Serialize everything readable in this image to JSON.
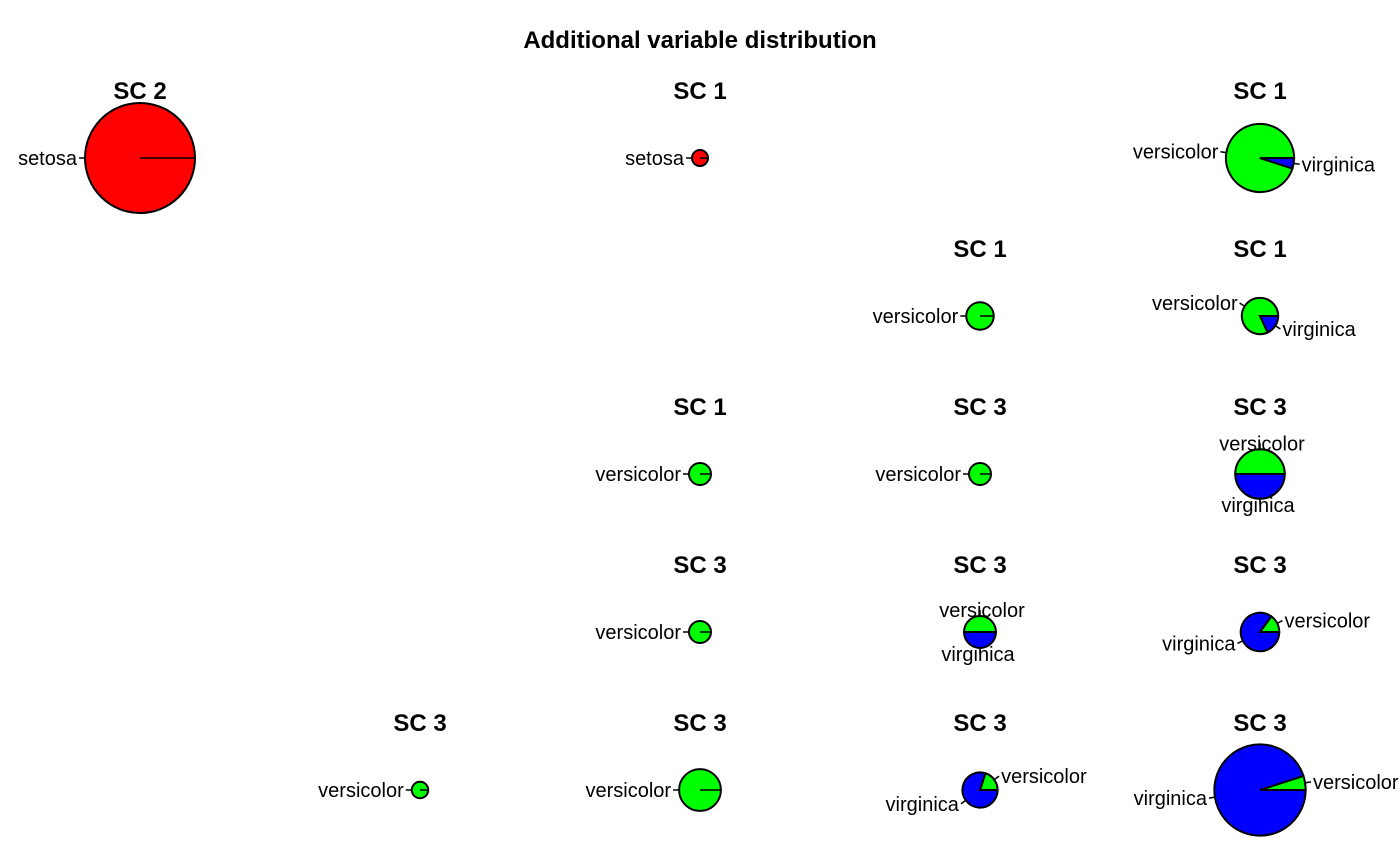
{
  "chart_data": {
    "type": "pie",
    "title": "Additional variable distribution",
    "colors": {
      "setosa": "#ff0000",
      "versicolor": "#00ff00",
      "virginica": "#0000ff"
    },
    "grid": {
      "rows": 5,
      "cols": 5
    },
    "cells": [
      {
        "row": 0,
        "col": 0,
        "title": "SC 2",
        "size": 1.0,
        "slices": [
          {
            "name": "setosa",
            "value": 1.0
          }
        ]
      },
      {
        "row": 0,
        "col": 2,
        "title": "SC 1",
        "size": 0.14,
        "slices": [
          {
            "name": "setosa",
            "value": 1.0
          }
        ]
      },
      {
        "row": 0,
        "col": 4,
        "title": "SC 1",
        "size": 0.62,
        "slices": [
          {
            "name": "versicolor",
            "value": 0.95
          },
          {
            "name": "virginica",
            "value": 0.05
          }
        ]
      },
      {
        "row": 1,
        "col": 3,
        "title": "SC 1",
        "size": 0.25,
        "slices": [
          {
            "name": "versicolor",
            "value": 1.0
          }
        ]
      },
      {
        "row": 1,
        "col": 4,
        "title": "SC 1",
        "size": 0.33,
        "slices": [
          {
            "name": "versicolor",
            "value": 0.82
          },
          {
            "name": "virginica",
            "value": 0.18
          }
        ]
      },
      {
        "row": 2,
        "col": 2,
        "title": "SC 1",
        "size": 0.2,
        "slices": [
          {
            "name": "versicolor",
            "value": 1.0
          }
        ]
      },
      {
        "row": 2,
        "col": 3,
        "title": "SC 3",
        "size": 0.2,
        "slices": [
          {
            "name": "versicolor",
            "value": 1.0
          }
        ]
      },
      {
        "row": 2,
        "col": 4,
        "title": "SC 3",
        "size": 0.45,
        "slices": [
          {
            "name": "versicolor",
            "value": 0.5
          },
          {
            "name": "virginica",
            "value": 0.5
          }
        ]
      },
      {
        "row": 3,
        "col": 2,
        "title": "SC 3",
        "size": 0.2,
        "slices": [
          {
            "name": "versicolor",
            "value": 1.0
          }
        ]
      },
      {
        "row": 3,
        "col": 3,
        "title": "SC 3",
        "size": 0.29,
        "slices": [
          {
            "name": "versicolor",
            "value": 0.5
          },
          {
            "name": "virginica",
            "value": 0.5
          }
        ]
      },
      {
        "row": 3,
        "col": 4,
        "title": "SC 3",
        "size": 0.35,
        "slices": [
          {
            "name": "versicolor",
            "value": 0.15
          },
          {
            "name": "virginica",
            "value": 0.85
          }
        ]
      },
      {
        "row": 4,
        "col": 1,
        "title": "SC 3",
        "size": 0.15,
        "slices": [
          {
            "name": "versicolor",
            "value": 1.0
          }
        ]
      },
      {
        "row": 4,
        "col": 2,
        "title": "SC 3",
        "size": 0.38,
        "slices": [
          {
            "name": "versicolor",
            "value": 1.0
          }
        ]
      },
      {
        "row": 4,
        "col": 3,
        "title": "SC 3",
        "size": 0.32,
        "slices": [
          {
            "name": "versicolor",
            "value": 0.2
          },
          {
            "name": "virginica",
            "value": 0.8
          }
        ]
      },
      {
        "row": 4,
        "col": 4,
        "title": "SC 3",
        "size": 0.83,
        "slices": [
          {
            "name": "versicolor",
            "value": 0.05
          },
          {
            "name": "virginica",
            "value": 0.95
          }
        ]
      }
    ]
  }
}
